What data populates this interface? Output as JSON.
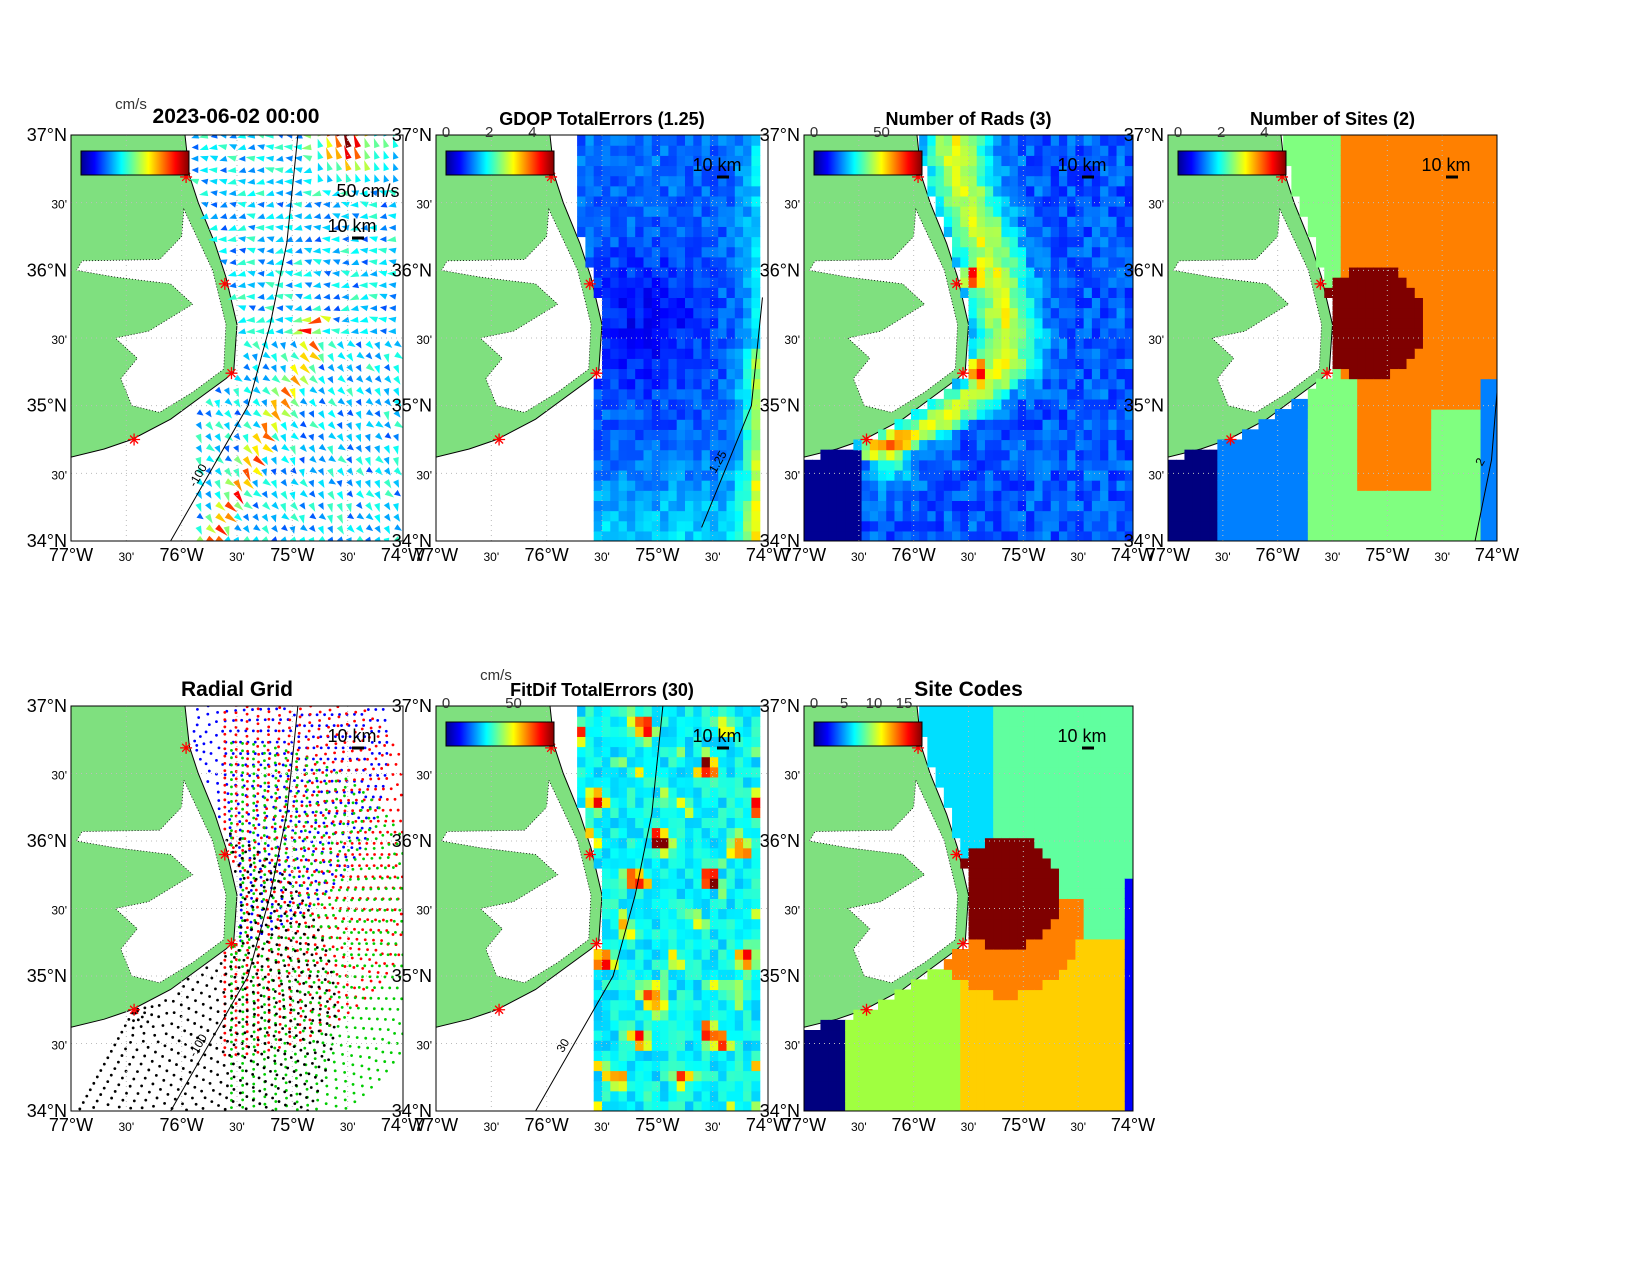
{
  "figure": {
    "lat_ticks": [
      "37°N",
      "30'",
      "36°N",
      "30'",
      "35°N",
      "30'",
      "34°N"
    ],
    "lon_ticks": [
      "77°W",
      "30'",
      "76°W",
      "30'",
      "75°W",
      "30'",
      "74°W"
    ],
    "lon_range": [
      -77,
      -74
    ],
    "lat_range": [
      34,
      37
    ],
    "scale_label": "10 km"
  },
  "colors": {
    "land": "#7fe07f",
    "site_marker": "#ff0000",
    "grid": "#bbbbbb"
  },
  "panels": [
    {
      "id": "totals",
      "title": "2023-06-02 00:00",
      "type": "vectors",
      "colorbar_unit": "cm/s",
      "colorbar_ticks": [],
      "clim": [
        0,
        100
      ],
      "extra_label": "50 cm/s",
      "contour_label": "-100"
    },
    {
      "id": "gdop",
      "title": "GDOP TotalErrors (1.25)",
      "type": "gdop",
      "colorbar_ticks": [
        "0",
        "2",
        "4"
      ],
      "clim": [
        0,
        5
      ],
      "contour_label": "1.25"
    },
    {
      "id": "rads",
      "title": "Number of Rads (3)",
      "type": "rads",
      "colorbar_ticks": [
        "0",
        "50"
      ],
      "clim": [
        0,
        80
      ]
    },
    {
      "id": "sites",
      "title": "Number of Sites (2)",
      "type": "sites",
      "colorbar_ticks": [
        "0",
        "2",
        "4"
      ],
      "clim": [
        0,
        5
      ],
      "contour_label": "2"
    },
    {
      "id": "radial-grid",
      "title": "Radial Grid",
      "type": "radgrid",
      "colorbar_ticks": [],
      "contour_label": "-100"
    },
    {
      "id": "fitdif",
      "title": "FitDif TotalErrors (30)",
      "type": "fitdif",
      "colorbar_unit": "cm/s",
      "colorbar_ticks": [
        "0",
        "50"
      ],
      "clim": [
        0,
        80
      ],
      "contour_label": "30"
    },
    {
      "id": "site-codes",
      "title": "Site Codes",
      "type": "codes",
      "colorbar_ticks": [
        "0",
        "5",
        "10",
        "15"
      ],
      "clim": [
        0,
        18
      ]
    }
  ],
  "chart_data": {
    "type": "heatmap",
    "sites": [
      {
        "lon": -75.96,
        "lat": 36.69
      },
      {
        "lon": -75.61,
        "lat": 35.9
      },
      {
        "lon": -75.55,
        "lat": 35.24
      },
      {
        "lon": -76.43,
        "lat": 34.75
      }
    ],
    "radial_grid_colors": [
      "#0000ff",
      "#ff0000",
      "#00cc00",
      "#000000"
    ]
  }
}
